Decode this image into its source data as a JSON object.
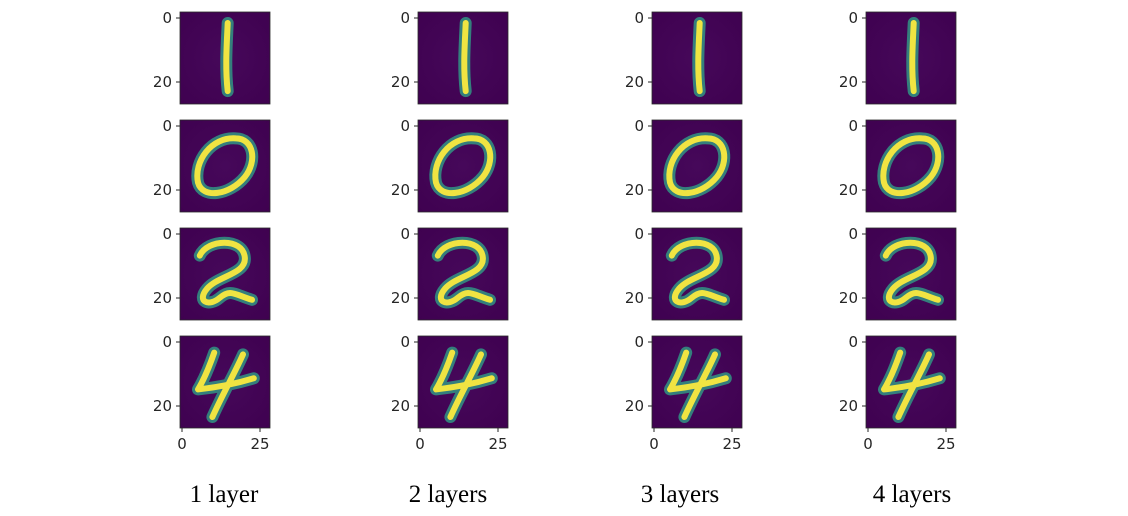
{
  "columns": [
    {
      "caption": "1 layer",
      "x_ticks": [
        "0",
        "25"
      ]
    },
    {
      "caption": "2 layers",
      "x_ticks": [
        "0",
        "25"
      ]
    },
    {
      "caption": "3 layers",
      "x_ticks": [
        "0",
        "25"
      ]
    },
    {
      "caption": "4 layers",
      "x_ticks": [
        "0",
        "25"
      ]
    }
  ],
  "rows": [
    {
      "digit": "1",
      "y_ticks": [
        "0",
        "20"
      ]
    },
    {
      "digit": "0",
      "y_ticks": [
        "0",
        "20"
      ]
    },
    {
      "digit": "2",
      "y_ticks": [
        "0",
        "20"
      ]
    },
    {
      "digit": "4",
      "y_ticks": [
        "0",
        "20"
      ]
    }
  ],
  "colors": {
    "background": "#440154",
    "digit": "#f0e442",
    "digit_edge": "#2fa88a",
    "caption": "#000000"
  }
}
